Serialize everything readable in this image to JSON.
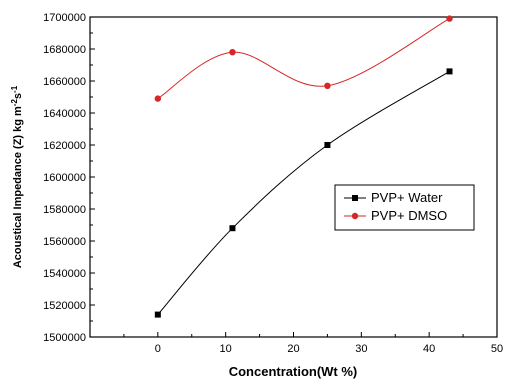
{
  "chart_data": {
    "type": "line",
    "xlabel": "Concentration(Wt %)",
    "ylabel": "Acoustical Impedance (Z) kg m⁻² s⁻¹",
    "xlim": [
      -10,
      50
    ],
    "ylim": [
      1500000,
      1700000
    ],
    "xticks": [
      0,
      10,
      20,
      30,
      40,
      50
    ],
    "xtick_labels": [
      "0",
      "10",
      "20",
      "30",
      "40",
      "50"
    ],
    "yticks": [
      1500000,
      1520000,
      1540000,
      1560000,
      1580000,
      1600000,
      1620000,
      1640000,
      1660000,
      1680000,
      1700000
    ],
    "ytick_labels": [
      "1500000",
      "1520000",
      "1540000",
      "1560000",
      "1580000",
      "1600000",
      "1620000",
      "1640000",
      "1660000",
      "1680000",
      "1700000"
    ],
    "grid": false,
    "legend_position": "right",
    "series": [
      {
        "name": "PVP+ Water",
        "x": [
          0,
          11,
          25,
          43
        ],
        "y": [
          1514000,
          1568000,
          1620000,
          1666000
        ],
        "color": "#000000",
        "marker": "square"
      },
      {
        "name": "PVP+ DMSO",
        "x": [
          0,
          11,
          25,
          43
        ],
        "y": [
          1649000,
          1678000,
          1657000,
          1699000
        ],
        "color": "#d62728",
        "marker": "circle"
      }
    ]
  }
}
